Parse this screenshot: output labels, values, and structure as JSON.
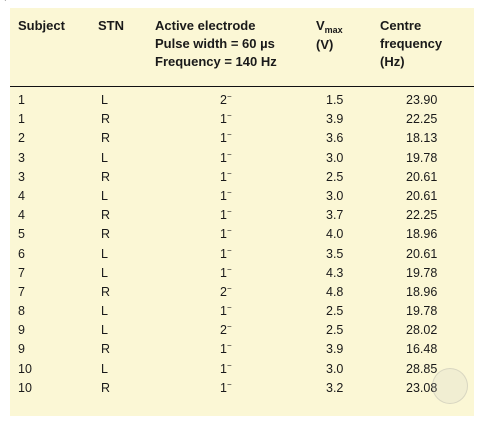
{
  "corner_mark": "`",
  "headers": {
    "subject": "Subject",
    "stn": "STN",
    "active_line1": "Active electrode",
    "active_line2": "Pulse width = 60 µs",
    "active_line3": "Frequency = 140 Hz",
    "vmax_main": "V",
    "vmax_sub": "max",
    "vmax_unit": "(V)",
    "centre_line1": "Centre",
    "centre_line2": "frequency",
    "centre_line3": "(Hz)"
  },
  "rows": [
    {
      "subject": "1",
      "stn": "L",
      "electrode": "2",
      "sign": "−",
      "voltage": "1.5",
      "frequency": "23.90"
    },
    {
      "subject": "1",
      "stn": "R",
      "electrode": "1",
      "sign": "−",
      "voltage": "3.9",
      "frequency": "22.25"
    },
    {
      "subject": "2",
      "stn": "R",
      "electrode": "1",
      "sign": "−",
      "voltage": "3.6",
      "frequency": "18.13"
    },
    {
      "subject": "3",
      "stn": "L",
      "electrode": "1",
      "sign": "−",
      "voltage": "3.0",
      "frequency": "19.78"
    },
    {
      "subject": "3",
      "stn": "R",
      "electrode": "1",
      "sign": "−",
      "voltage": "2.5",
      "frequency": "20.61"
    },
    {
      "subject": "4",
      "stn": "L",
      "electrode": "1",
      "sign": "−",
      "voltage": "3.0",
      "frequency": "20.61"
    },
    {
      "subject": "4",
      "stn": "R",
      "electrode": "1",
      "sign": "−",
      "voltage": "3.7",
      "frequency": "22.25"
    },
    {
      "subject": "5",
      "stn": "R",
      "electrode": "1",
      "sign": "−",
      "voltage": "4.0",
      "frequency": "18.96"
    },
    {
      "subject": "6",
      "stn": "L",
      "electrode": "1",
      "sign": "−",
      "voltage": "3.5",
      "frequency": "20.61"
    },
    {
      "subject": "7",
      "stn": "L",
      "electrode": "1",
      "sign": "−",
      "voltage": "4.3",
      "frequency": "19.78"
    },
    {
      "subject": "7",
      "stn": "R",
      "electrode": "2",
      "sign": "−",
      "voltage": "4.8",
      "frequency": "18.96"
    },
    {
      "subject": "8",
      "stn": "L",
      "electrode": "1",
      "sign": "−",
      "voltage": "2.5",
      "frequency": "19.78"
    },
    {
      "subject": "9",
      "stn": "L",
      "electrode": "2",
      "sign": "−",
      "voltage": "2.5",
      "frequency": "28.02"
    },
    {
      "subject": "9",
      "stn": "R",
      "electrode": "1",
      "sign": "−",
      "voltage": "3.9",
      "frequency": "16.48"
    },
    {
      "subject": "10",
      "stn": "L",
      "electrode": "1",
      "sign": "−",
      "voltage": "3.0",
      "frequency": "28.85"
    },
    {
      "subject": "10",
      "stn": "R",
      "electrode": "1",
      "sign": "−",
      "voltage": "3.2",
      "frequency": "23.08"
    }
  ],
  "colors": {
    "panel_background": "#fbf7d5",
    "text": "#1a1a1a",
    "rule": "#111111"
  }
}
